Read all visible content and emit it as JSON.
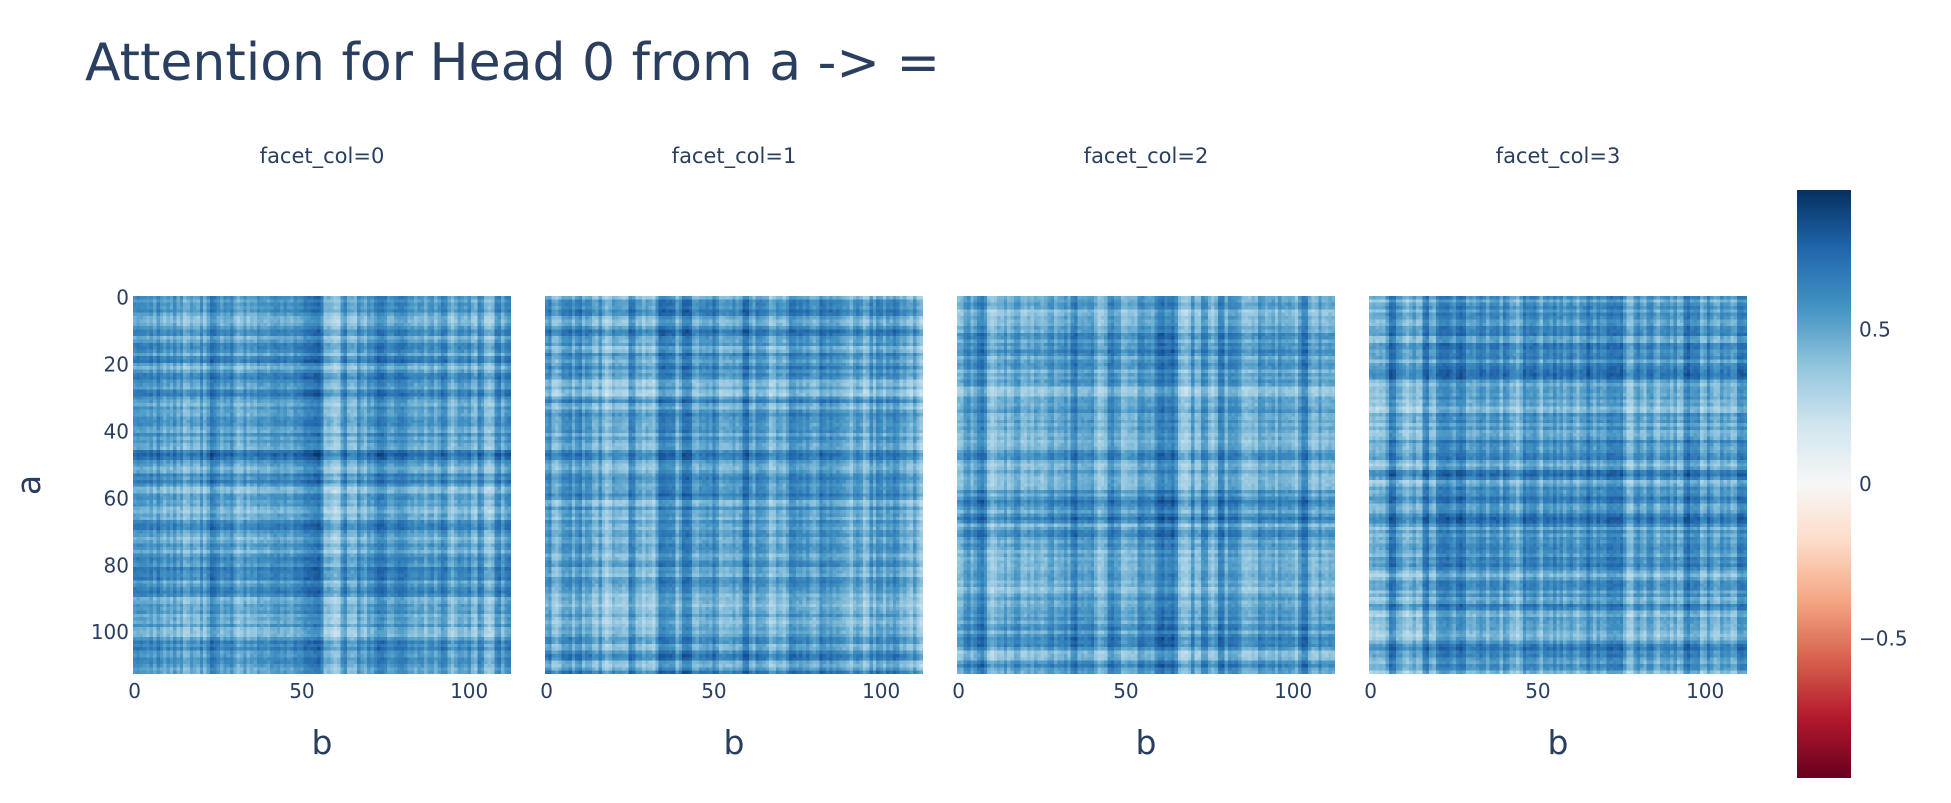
{
  "chart_data": {
    "type": "heatmap",
    "title": "Attention for Head 0 from a -> =",
    "xlabel": "b",
    "ylabel": "a",
    "grid_size": 113,
    "x_ticks": [
      "0",
      "50",
      "100"
    ],
    "x_tick_values": [
      0,
      50,
      100
    ],
    "y_ticks": [
      "0",
      "20",
      "40",
      "60",
      "80",
      "100"
    ],
    "y_tick_values": [
      0,
      20,
      40,
      60,
      80,
      100
    ],
    "color_range": [
      -0.95,
      0.95
    ],
    "colorbar_ticks": [
      "0.5",
      "0",
      "−0.5"
    ],
    "colorbar_tick_values": [
      0.5,
      0,
      -0.5
    ],
    "colorscale": [
      "#67001f",
      "#b2182b",
      "#d6604d",
      "#f4a582",
      "#fddbc7",
      "#f7f7f7",
      "#d1e5f0",
      "#92c5de",
      "#4393c3",
      "#2166ac",
      "#053061"
    ],
    "facets": [
      {
        "label": "facet_col=0"
      },
      {
        "label": "facet_col=1"
      },
      {
        "label": "facet_col=2"
      },
      {
        "label": "facet_col=3"
      }
    ]
  }
}
